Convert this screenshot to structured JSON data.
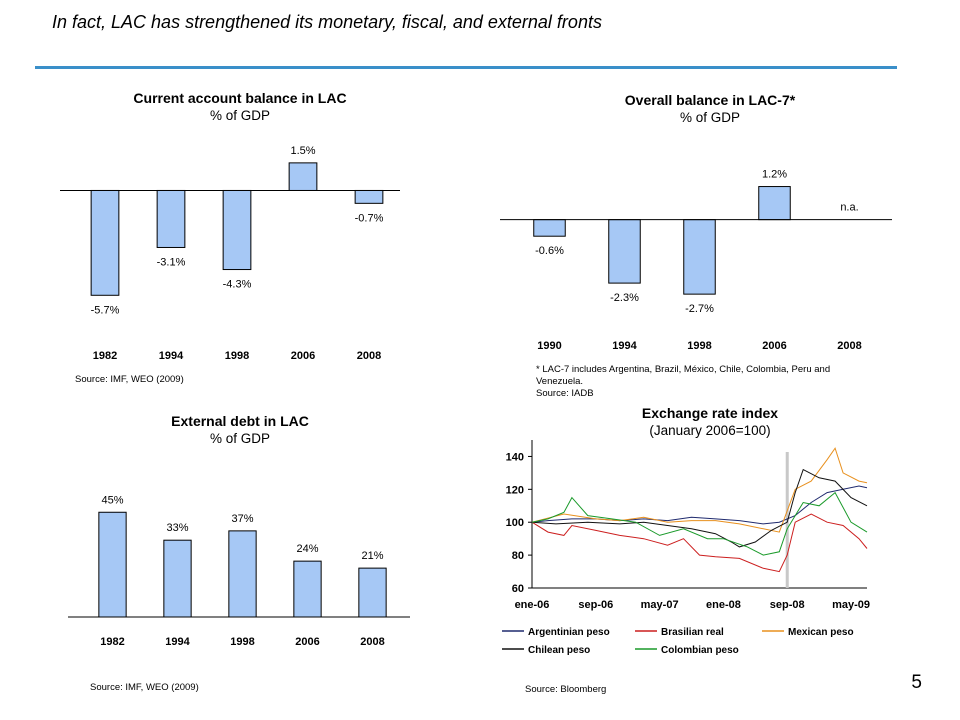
{
  "slide": {
    "title": "In fact, LAC has strengthened its  monetary, fiscal, and external fronts",
    "page_number": "5",
    "accent_color": "#3a8fc9"
  },
  "chart_data": [
    {
      "id": "current_account",
      "type": "bar",
      "title": "Current account balance in LAC",
      "subtitle": "% of GDP",
      "categories": [
        "1982",
        "1994",
        "1998",
        "2006",
        "2008"
      ],
      "values": [
        -5.7,
        -3.1,
        -4.3,
        1.5,
        -0.7
      ],
      "data_labels": [
        "-5.7%",
        "-3.1%",
        "-4.3%",
        "1.5%",
        "-0.7%"
      ],
      "bar_color": "#a6c8f5",
      "ylim": [
        -6.5,
        2.2
      ],
      "note": "Source: IMF, WEO (2009)"
    },
    {
      "id": "overall_balance",
      "type": "bar",
      "title": "Overall balance in LAC-7*",
      "subtitle": "% of GDP",
      "categories": [
        "1990",
        "1994",
        "1998",
        "2006",
        "2008"
      ],
      "values": [
        -0.6,
        -2.3,
        -2.7,
        1.2,
        null
      ],
      "data_labels": [
        "-0.6%",
        "-2.3%",
        "-2.7%",
        "1.2%",
        "n.a."
      ],
      "bar_color": "#a6c8f5",
      "ylim": [
        -4.0,
        1.8
      ],
      "note_lines": [
        "* LAC-7 includes  Argentina, Brazil, México, Chile, Colombia, Peru and",
        "Venezuela.",
        "Source: IADB"
      ]
    },
    {
      "id": "external_debt",
      "type": "bar",
      "title": "External debt in LAC",
      "subtitle": "% of GDP",
      "categories": [
        "1982",
        "1994",
        "1998",
        "2006",
        "2008"
      ],
      "values": [
        45,
        33,
        37,
        24,
        21
      ],
      "data_labels": [
        "45%",
        "33%",
        "37%",
        "24%",
        "21%"
      ],
      "bar_color": "#a6c8f5",
      "ylim": [
        0,
        58
      ],
      "note": "Source: IMF, WEO (2009)"
    },
    {
      "id": "exchange_rate",
      "type": "line",
      "title": "Exchange rate index",
      "subtitle": "(January 2006=100)",
      "x_ticks": [
        "ene-06",
        "sep-06",
        "may-07",
        "ene-08",
        "sep-08",
        "may-09"
      ],
      "x_range": [
        "2006-01",
        "2009-07"
      ],
      "ylim": [
        60,
        150
      ],
      "y_ticks": [
        60,
        80,
        100,
        120,
        140
      ],
      "vertical_marker": "2008-09",
      "legend_position": "bottom",
      "series": [
        {
          "name": "Argentinian peso",
          "color": "#1f2a6e",
          "points": [
            [
              "2006-01",
              100
            ],
            [
              "2006-03",
              101
            ],
            [
              "2006-06",
              102
            ],
            [
              "2006-09",
              102
            ],
            [
              "2006-12",
              101
            ],
            [
              "2007-03",
              102
            ],
            [
              "2007-06",
              101
            ],
            [
              "2007-09",
              103
            ],
            [
              "2007-12",
              102
            ],
            [
              "2008-03",
              101
            ],
            [
              "2008-06",
              99
            ],
            [
              "2008-08",
              100
            ],
            [
              "2008-10",
              104
            ],
            [
              "2008-12",
              112
            ],
            [
              "2009-02",
              118
            ],
            [
              "2009-04",
              120
            ],
            [
              "2009-06",
              122
            ],
            [
              "2009-07",
              121
            ]
          ]
        },
        {
          "name": "Brasilian real",
          "color": "#cc1f1f",
          "points": [
            [
              "2006-01",
              100
            ],
            [
              "2006-03",
              94
            ],
            [
              "2006-05",
              92
            ],
            [
              "2006-06",
              98
            ],
            [
              "2006-09",
              95
            ],
            [
              "2006-12",
              92
            ],
            [
              "2007-03",
              90
            ],
            [
              "2007-06",
              86
            ],
            [
              "2007-08",
              90
            ],
            [
              "2007-10",
              80
            ],
            [
              "2007-12",
              79
            ],
            [
              "2008-03",
              78
            ],
            [
              "2008-06",
              72
            ],
            [
              "2008-08",
              70
            ],
            [
              "2008-09",
              80
            ],
            [
              "2008-10",
              100
            ],
            [
              "2008-12",
              105
            ],
            [
              "2009-02",
              100
            ],
            [
              "2009-04",
              98
            ],
            [
              "2009-06",
              90
            ],
            [
              "2009-07",
              84
            ]
          ]
        },
        {
          "name": "Mexican peso",
          "color": "#e8901e",
          "points": [
            [
              "2006-01",
              100
            ],
            [
              "2006-05",
              105
            ],
            [
              "2006-09",
              102
            ],
            [
              "2006-12",
              101
            ],
            [
              "2007-03",
              103
            ],
            [
              "2007-06",
              100
            ],
            [
              "2007-09",
              101
            ],
            [
              "2007-12",
              101
            ],
            [
              "2008-03",
              99
            ],
            [
              "2008-06",
              96
            ],
            [
              "2008-08",
              94
            ],
            [
              "2008-10",
              120
            ],
            [
              "2008-12",
              125
            ],
            [
              "2009-02",
              138
            ],
            [
              "2009-03",
              145
            ],
            [
              "2009-04",
              130
            ],
            [
              "2009-06",
              125
            ],
            [
              "2009-07",
              124
            ]
          ]
        },
        {
          "name": "Chilean peso",
          "color": "#111111",
          "points": [
            [
              "2006-01",
              100
            ],
            [
              "2006-04",
              99
            ],
            [
              "2006-08",
              100
            ],
            [
              "2006-12",
              99
            ],
            [
              "2007-03",
              100
            ],
            [
              "2007-06",
              98
            ],
            [
              "2007-09",
              96
            ],
            [
              "2007-12",
              93
            ],
            [
              "2008-02",
              88
            ],
            [
              "2008-03",
              85
            ],
            [
              "2008-05",
              88
            ],
            [
              "2008-07",
              95
            ],
            [
              "2008-09",
              100
            ],
            [
              "2008-10",
              118
            ],
            [
              "2008-11",
              132
            ],
            [
              "2009-01",
              127
            ],
            [
              "2009-03",
              125
            ],
            [
              "2009-05",
              115
            ],
            [
              "2009-07",
              110
            ]
          ]
        },
        {
          "name": "Colombian peso",
          "color": "#1a9a2a",
          "points": [
            [
              "2006-01",
              100
            ],
            [
              "2006-03",
              102
            ],
            [
              "2006-05",
              106
            ],
            [
              "2006-06",
              115
            ],
            [
              "2006-08",
              104
            ],
            [
              "2006-11",
              102
            ],
            [
              "2007-02",
              100
            ],
            [
              "2007-05",
              92
            ],
            [
              "2007-08",
              96
            ],
            [
              "2007-11",
              90
            ],
            [
              "2008-01",
              90
            ],
            [
              "2008-04",
              85
            ],
            [
              "2008-06",
              80
            ],
            [
              "2008-08",
              82
            ],
            [
              "2008-09",
              96
            ],
            [
              "2008-11",
              112
            ],
            [
              "2009-01",
              110
            ],
            [
              "2009-03",
              118
            ],
            [
              "2009-05",
              100
            ],
            [
              "2009-07",
              94
            ]
          ]
        }
      ],
      "note": "Source: Bloomberg"
    }
  ]
}
